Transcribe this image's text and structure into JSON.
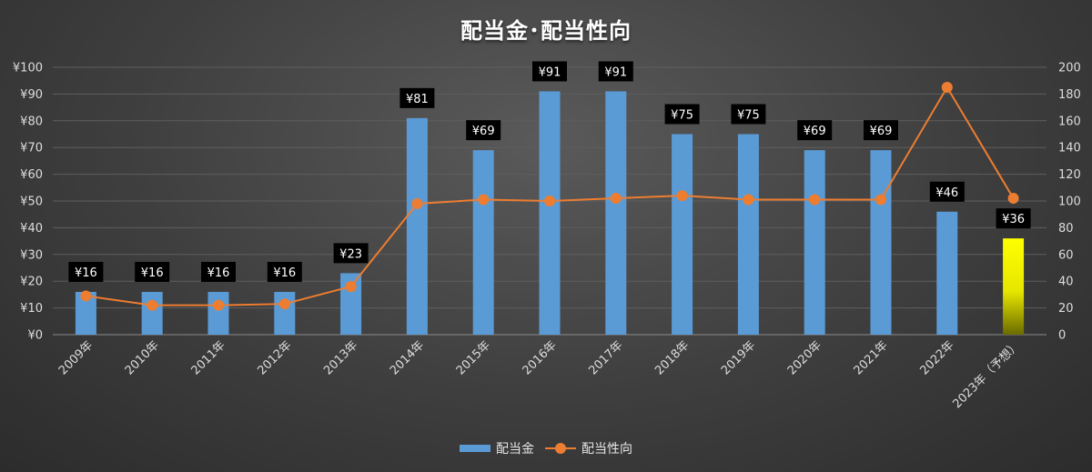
{
  "chart_data": {
    "type": "bar",
    "title": "配当金･配当性向",
    "categories": [
      "2009年",
      "2010年",
      "2011年",
      "2012年",
      "2013年",
      "2014年",
      "2015年",
      "2016年",
      "2017年",
      "2018年",
      "2019年",
      "2020年",
      "2021年",
      "2022年",
      "2023年（予想）"
    ],
    "series": [
      {
        "name": "配当金",
        "type": "bar",
        "axis": "left",
        "values": [
          16,
          16,
          16,
          16,
          23,
          81,
          69,
          91,
          91,
          75,
          75,
          69,
          69,
          46,
          36
        ],
        "labels": [
          "¥16",
          "¥16",
          "¥16",
          "¥16",
          "¥23",
          "¥81",
          "¥69",
          "¥91",
          "¥91",
          "¥75",
          "¥75",
          "¥69",
          "¥69",
          "¥46",
          "¥36"
        ],
        "color": "#5b9bd5",
        "highlight_index": 14,
        "highlight_color": "#ffff00"
      },
      {
        "name": "配当性向",
        "type": "line",
        "axis": "right",
        "values": [
          29,
          22,
          22,
          23,
          36,
          98,
          101,
          100,
          102,
          104,
          101,
          101,
          101,
          185,
          102
        ],
        "color": "#ed7d31"
      }
    ],
    "left_axis": {
      "range": [
        0,
        100
      ],
      "ticks": [
        0,
        10,
        20,
        30,
        40,
        50,
        60,
        70,
        80,
        90,
        100
      ],
      "tick_labels": [
        "¥0",
        "¥10",
        "¥20",
        "¥30",
        "¥40",
        "¥50",
        "¥60",
        "¥70",
        "¥80",
        "¥90",
        "¥100"
      ]
    },
    "right_axis": {
      "range": [
        0,
        200
      ],
      "ticks": [
        0,
        20,
        40,
        60,
        80,
        100,
        120,
        140,
        160,
        180,
        200
      ],
      "tick_labels": [
        "0",
        "20",
        "40",
        "60",
        "80",
        "100",
        "120",
        "140",
        "160",
        "180",
        "200"
      ]
    },
    "grid": true,
    "legend_position": "bottom"
  }
}
